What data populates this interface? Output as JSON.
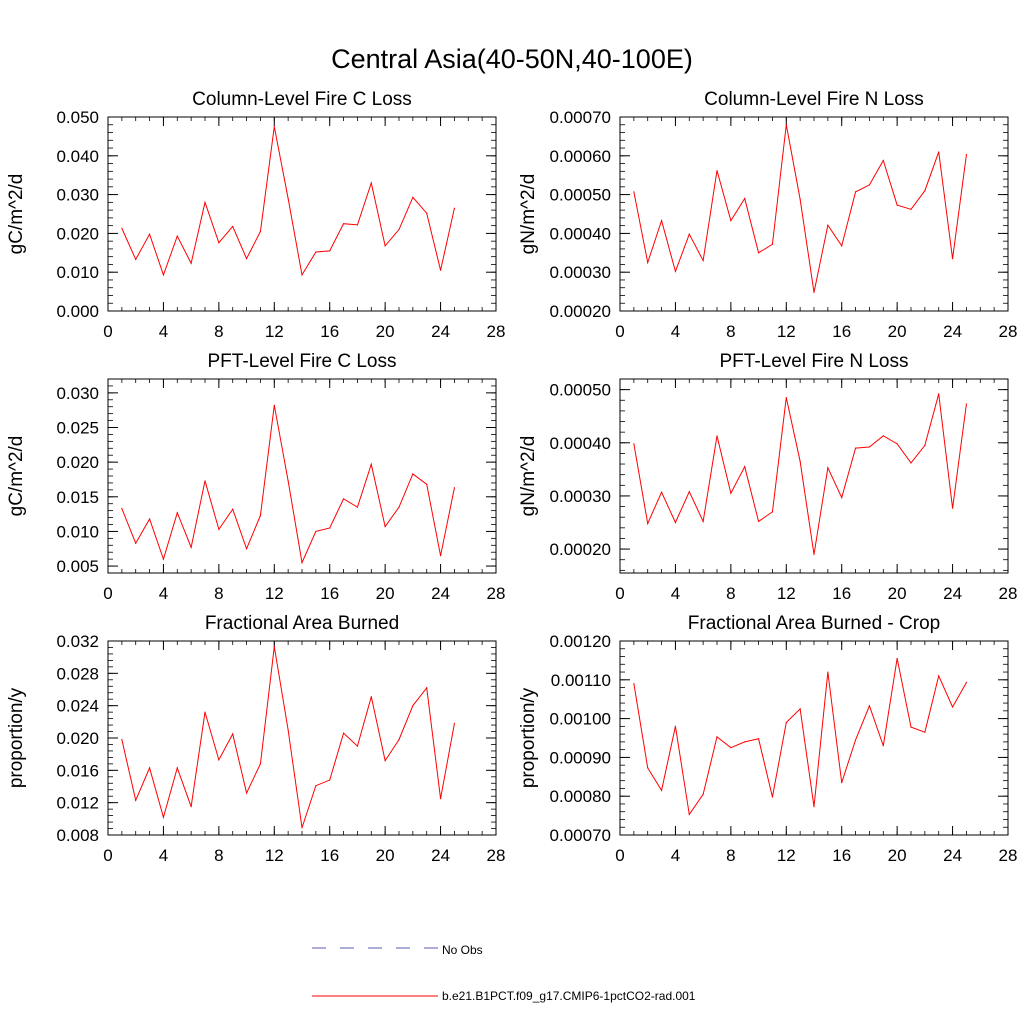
{
  "title": "Central Asia(40-50N,40-100E)",
  "legend": {
    "entries": [
      {
        "label": "No Obs",
        "color": "#5a5ab4",
        "dash": "dashed"
      },
      {
        "label": "b.e21.B1PCT.f09_g17.CMIP6-1pctCO2-rad.001",
        "color": "#ff0000",
        "dash": "solid"
      }
    ]
  },
  "chart_data": [
    {
      "type": "line",
      "title": "Column-Level Fire C Loss",
      "ylabel": "gC/m^2/d",
      "xlim": [
        0,
        28
      ],
      "ylim": [
        0.0,
        0.05
      ],
      "x_ticks": [
        "0",
        "4",
        "8",
        "12",
        "16",
        "20",
        "24",
        "28"
      ],
      "y_ticks": [
        "0.000",
        "0.010",
        "0.020",
        "0.030",
        "0.040",
        "0.050"
      ],
      "series": [
        {
          "color": "#ff0000",
          "x": [
            1,
            2,
            3,
            4,
            5,
            6,
            7,
            8,
            9,
            10,
            11,
            12,
            13,
            14,
            15,
            16,
            17,
            18,
            19,
            20,
            21,
            22,
            23,
            24,
            25
          ],
          "values": [
            0.0213,
            0.0133,
            0.0198,
            0.0093,
            0.0193,
            0.0123,
            0.028,
            0.0176,
            0.0218,
            0.0135,
            0.0205,
            0.0475,
            0.029,
            0.0093,
            0.0152,
            0.0155,
            0.0225,
            0.0222,
            0.033,
            0.0168,
            0.021,
            0.0293,
            0.0252,
            0.0105,
            0.0265
          ]
        }
      ]
    },
    {
      "type": "line",
      "title": "Column-Level Fire N Loss",
      "ylabel": "gN/m^2/d",
      "xlim": [
        0,
        28
      ],
      "ylim": [
        0.0002,
        0.0007
      ],
      "x_ticks": [
        "0",
        "4",
        "8",
        "12",
        "16",
        "20",
        "24",
        "28"
      ],
      "y_ticks": [
        "0.00020",
        "0.00030",
        "0.00040",
        "0.00050",
        "0.00060",
        "0.00070"
      ],
      "series": [
        {
          "color": "#ff0000",
          "x": [
            1,
            2,
            3,
            4,
            5,
            6,
            7,
            8,
            9,
            10,
            11,
            12,
            13,
            14,
            15,
            16,
            17,
            18,
            19,
            20,
            21,
            22,
            23,
            24,
            25
          ],
          "values": [
            0.000507,
            0.000325,
            0.000433,
            0.000302,
            0.000398,
            0.00033,
            0.000562,
            0.000433,
            0.00049,
            0.00035,
            0.000372,
            0.00068,
            0.000488,
            0.000248,
            0.000421,
            0.000368,
            0.000507,
            0.000525,
            0.000588,
            0.000473,
            0.000462,
            0.00051,
            0.00061,
            0.000335,
            0.000603
          ]
        }
      ]
    },
    {
      "type": "line",
      "title": "PFT-Level Fire C Loss",
      "ylabel": "gC/m^2/d",
      "xlim": [
        0,
        28
      ],
      "ylim": [
        0.004,
        0.032
      ],
      "x_ticks": [
        "0",
        "4",
        "8",
        "12",
        "16",
        "20",
        "24",
        "28"
      ],
      "y_ticks": [
        "0.005",
        "0.010",
        "0.015",
        "0.020",
        "0.025",
        "0.030"
      ],
      "series": [
        {
          "color": "#ff0000",
          "x": [
            1,
            2,
            3,
            4,
            5,
            6,
            7,
            8,
            9,
            10,
            11,
            12,
            13,
            14,
            15,
            16,
            17,
            18,
            19,
            20,
            21,
            22,
            23,
            24,
            25
          ],
          "values": [
            0.0133,
            0.0083,
            0.0118,
            0.006,
            0.0127,
            0.0077,
            0.0173,
            0.0103,
            0.0132,
            0.0075,
            0.0123,
            0.0282,
            0.0173,
            0.0055,
            0.01,
            0.0105,
            0.0147,
            0.0135,
            0.0197,
            0.0107,
            0.0135,
            0.0183,
            0.0168,
            0.0065,
            0.0163
          ]
        }
      ]
    },
    {
      "type": "line",
      "title": "PFT-Level Fire N Loss",
      "ylabel": "gN/m^2/d",
      "xlim": [
        0,
        28
      ],
      "ylim": [
        0.000155,
        0.00052
      ],
      "x_ticks": [
        "0",
        "4",
        "8",
        "12",
        "16",
        "20",
        "24",
        "28"
      ],
      "y_ticks": [
        "0.00020",
        "0.00030",
        "0.00040",
        "0.00050"
      ],
      "series": [
        {
          "color": "#ff0000",
          "x": [
            1,
            2,
            3,
            4,
            5,
            6,
            7,
            8,
            9,
            10,
            11,
            12,
            13,
            14,
            15,
            16,
            17,
            18,
            19,
            20,
            21,
            22,
            23,
            24,
            25
          ],
          "values": [
            0.000398,
            0.000248,
            0.000307,
            0.00025,
            0.000308,
            0.000252,
            0.000413,
            0.000305,
            0.000355,
            0.000252,
            0.00027,
            0.000485,
            0.000365,
            0.00019,
            0.000353,
            0.000297,
            0.00039,
            0.000392,
            0.000413,
            0.000398,
            0.000362,
            0.000395,
            0.000492,
            0.000277,
            0.000473
          ]
        }
      ]
    },
    {
      "type": "line",
      "title": "Fractional Area Burned",
      "ylabel": "proportion/y",
      "xlim": [
        0,
        28
      ],
      "ylim": [
        0.008,
        0.032
      ],
      "x_ticks": [
        "0",
        "4",
        "8",
        "12",
        "16",
        "20",
        "24",
        "28"
      ],
      "y_ticks": [
        "0.008",
        "0.012",
        "0.016",
        "0.020",
        "0.024",
        "0.028",
        "0.032"
      ],
      "series": [
        {
          "color": "#ff0000",
          "x": [
            1,
            2,
            3,
            4,
            5,
            6,
            7,
            8,
            9,
            10,
            11,
            12,
            13,
            14,
            15,
            16,
            17,
            18,
            19,
            20,
            21,
            22,
            23,
            24,
            25
          ],
          "values": [
            0.0198,
            0.0123,
            0.0163,
            0.0102,
            0.0163,
            0.0115,
            0.0232,
            0.0173,
            0.0205,
            0.0132,
            0.0168,
            0.0313,
            0.021,
            0.0089,
            0.0141,
            0.0148,
            0.0206,
            0.019,
            0.0251,
            0.0172,
            0.0198,
            0.024,
            0.0262,
            0.0125,
            0.0218
          ]
        }
      ]
    },
    {
      "type": "line",
      "title": "Fractional Area Burned - Crop",
      "ylabel": "proportion/y",
      "xlim": [
        0,
        28
      ],
      "ylim": [
        0.0007,
        0.0012
      ],
      "x_ticks": [
        "0",
        "4",
        "8",
        "12",
        "16",
        "20",
        "24",
        "28"
      ],
      "y_ticks": [
        "0.00070",
        "0.00080",
        "0.00090",
        "0.00100",
        "0.00110",
        "0.00120"
      ],
      "series": [
        {
          "color": "#ff0000",
          "x": [
            1,
            2,
            3,
            4,
            5,
            6,
            7,
            8,
            9,
            10,
            11,
            12,
            13,
            14,
            15,
            16,
            17,
            18,
            19,
            20,
            21,
            22,
            23,
            24,
            25
          ],
          "values": [
            0.00109,
            0.000873,
            0.000815,
            0.00098,
            0.000753,
            0.000805,
            0.000953,
            0.000925,
            0.00094,
            0.000948,
            0.000798,
            0.00099,
            0.001025,
            0.000773,
            0.00112,
            0.000835,
            0.000945,
            0.001033,
            0.00093,
            0.001155,
            0.000978,
            0.000965,
            0.00111,
            0.00103,
            0.001093
          ]
        }
      ]
    }
  ]
}
